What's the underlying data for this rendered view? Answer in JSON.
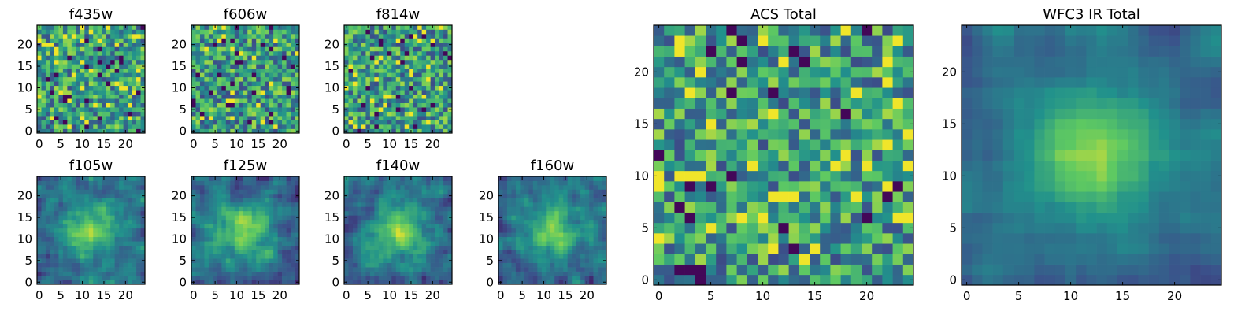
{
  "figure": {
    "background": "#ffffff"
  },
  "colormap": {
    "name": "viridis",
    "stops": [
      "#440154",
      "#3b528b",
      "#21918c",
      "#5ec962",
      "#fde725"
    ]
  },
  "chart_data": [
    {
      "id": "f435w",
      "type": "heatmap",
      "title": "f435w",
      "xlim": [
        -0.5,
        24.5
      ],
      "ylim": [
        -0.5,
        24.5
      ],
      "xticks": [
        0,
        5,
        10,
        15,
        20
      ],
      "yticks": [
        0,
        5,
        10,
        15,
        20
      ],
      "grid": false,
      "grid_size": [
        25,
        25
      ],
      "pattern": "noise",
      "seed": 11
    },
    {
      "id": "f606w",
      "type": "heatmap",
      "title": "f606w",
      "xlim": [
        -0.5,
        24.5
      ],
      "ylim": [
        -0.5,
        24.5
      ],
      "xticks": [
        0,
        5,
        10,
        15,
        20
      ],
      "yticks": [
        0,
        5,
        10,
        15,
        20
      ],
      "grid": false,
      "grid_size": [
        25,
        25
      ],
      "pattern": "noise",
      "seed": 23
    },
    {
      "id": "f814w",
      "type": "heatmap",
      "title": "f814w",
      "xlim": [
        -0.5,
        24.5
      ],
      "ylim": [
        -0.5,
        24.5
      ],
      "xticks": [
        0,
        5,
        10,
        15,
        20
      ],
      "yticks": [
        0,
        5,
        10,
        15,
        20
      ],
      "grid": false,
      "grid_size": [
        25,
        25
      ],
      "pattern": "noise",
      "seed": 37
    },
    {
      "id": "f105w",
      "type": "heatmap",
      "title": "f105w",
      "xlim": [
        -0.5,
        24.5
      ],
      "ylim": [
        -0.5,
        24.5
      ],
      "xticks": [
        0,
        5,
        10,
        15,
        20
      ],
      "yticks": [
        0,
        5,
        10,
        15,
        20
      ],
      "grid": false,
      "grid_size": [
        25,
        25
      ],
      "pattern": "source",
      "seed": 41
    },
    {
      "id": "f125w",
      "type": "heatmap",
      "title": "f125w",
      "xlim": [
        -0.5,
        24.5
      ],
      "ylim": [
        -0.5,
        24.5
      ],
      "xticks": [
        0,
        5,
        10,
        15,
        20
      ],
      "yticks": [
        0,
        5,
        10,
        15,
        20
      ],
      "grid": false,
      "grid_size": [
        25,
        25
      ],
      "pattern": "source",
      "seed": 53
    },
    {
      "id": "f140w",
      "type": "heatmap",
      "title": "f140w",
      "xlim": [
        -0.5,
        24.5
      ],
      "ylim": [
        -0.5,
        24.5
      ],
      "xticks": [
        0,
        5,
        10,
        15,
        20
      ],
      "yticks": [
        0,
        5,
        10,
        15,
        20
      ],
      "grid": false,
      "grid_size": [
        25,
        25
      ],
      "pattern": "source",
      "seed": 67
    },
    {
      "id": "f160w",
      "type": "heatmap",
      "title": "f160w",
      "xlim": [
        -0.5,
        24.5
      ],
      "ylim": [
        -0.5,
        24.5
      ],
      "xticks": [
        0,
        5,
        10,
        15,
        20
      ],
      "yticks": [
        0,
        5,
        10,
        15,
        20
      ],
      "grid": false,
      "grid_size": [
        25,
        25
      ],
      "pattern": "source",
      "seed": 79
    },
    {
      "id": "acs-total",
      "type": "heatmap",
      "title": "ACS Total",
      "xlim": [
        -0.5,
        24.5
      ],
      "ylim": [
        -0.5,
        24.5
      ],
      "xticks": [
        0,
        5,
        10,
        15,
        20
      ],
      "yticks": [
        0,
        5,
        10,
        15,
        20
      ],
      "grid": false,
      "grid_size": [
        25,
        25
      ],
      "pattern": "noise",
      "seed": 97
    },
    {
      "id": "wfc3-ir-total",
      "type": "heatmap",
      "title": "WFC3 IR Total",
      "xlim": [
        -0.5,
        24.5
      ],
      "ylim": [
        -0.5,
        24.5
      ],
      "xticks": [
        0,
        5,
        10,
        15,
        20
      ],
      "yticks": [
        0,
        5,
        10,
        15,
        20
      ],
      "grid": false,
      "grid_size": [
        25,
        25
      ],
      "pattern": "source-smooth",
      "seed": 113
    }
  ]
}
